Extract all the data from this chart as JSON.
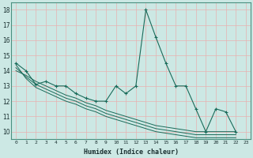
{
  "xlabel": "Humidex (Indice chaleur)",
  "xlim": [
    -0.5,
    23.5
  ],
  "ylim": [
    9.5,
    18.5
  ],
  "yticks": [
    10,
    11,
    12,
    13,
    14,
    15,
    16,
    17,
    18
  ],
  "xticks": [
    0,
    1,
    2,
    3,
    4,
    5,
    6,
    7,
    8,
    9,
    10,
    11,
    12,
    13,
    14,
    15,
    16,
    17,
    18,
    19,
    20,
    21,
    22,
    23
  ],
  "xtick_labels": [
    "0",
    "1",
    "2",
    "3",
    "4",
    "5",
    "6",
    "7",
    "8",
    "9",
    "10",
    "11",
    "12",
    "13",
    "14",
    "15",
    "16",
    "17",
    "18",
    "19",
    "20",
    "21",
    "22",
    "23"
  ],
  "background_color": "#cce8e4",
  "grid_color": "#e8b0b0",
  "line_color": "#1a6b5a",
  "main_y": [
    14.5,
    14.0,
    13.1,
    13.3,
    13.0,
    13.0,
    12.5,
    12.2,
    12.0,
    12.0,
    13.0,
    12.5,
    13.0,
    18.0,
    16.2,
    14.5,
    13.0,
    13.0,
    11.5,
    10.0,
    11.5,
    11.3,
    10.0
  ],
  "line1_y": [
    14.4,
    13.5,
    12.9,
    12.6,
    12.3,
    12.0,
    11.8,
    11.5,
    11.3,
    11.0,
    10.8,
    10.6,
    10.4,
    10.2,
    10.0,
    9.9,
    9.8,
    9.7,
    9.6,
    9.6,
    9.6,
    9.6,
    9.6
  ],
  "line2_y": [
    14.2,
    13.6,
    13.1,
    12.8,
    12.5,
    12.2,
    12.0,
    11.7,
    11.5,
    11.2,
    11.0,
    10.8,
    10.6,
    10.4,
    10.2,
    10.1,
    10.0,
    9.9,
    9.8,
    9.8,
    9.8,
    9.8,
    9.8
  ],
  "line3_y": [
    14.0,
    13.7,
    13.3,
    13.0,
    12.7,
    12.4,
    12.2,
    11.9,
    11.7,
    11.4,
    11.2,
    11.0,
    10.8,
    10.6,
    10.4,
    10.3,
    10.2,
    10.1,
    10.0,
    10.0,
    10.0,
    10.0,
    10.0
  ]
}
